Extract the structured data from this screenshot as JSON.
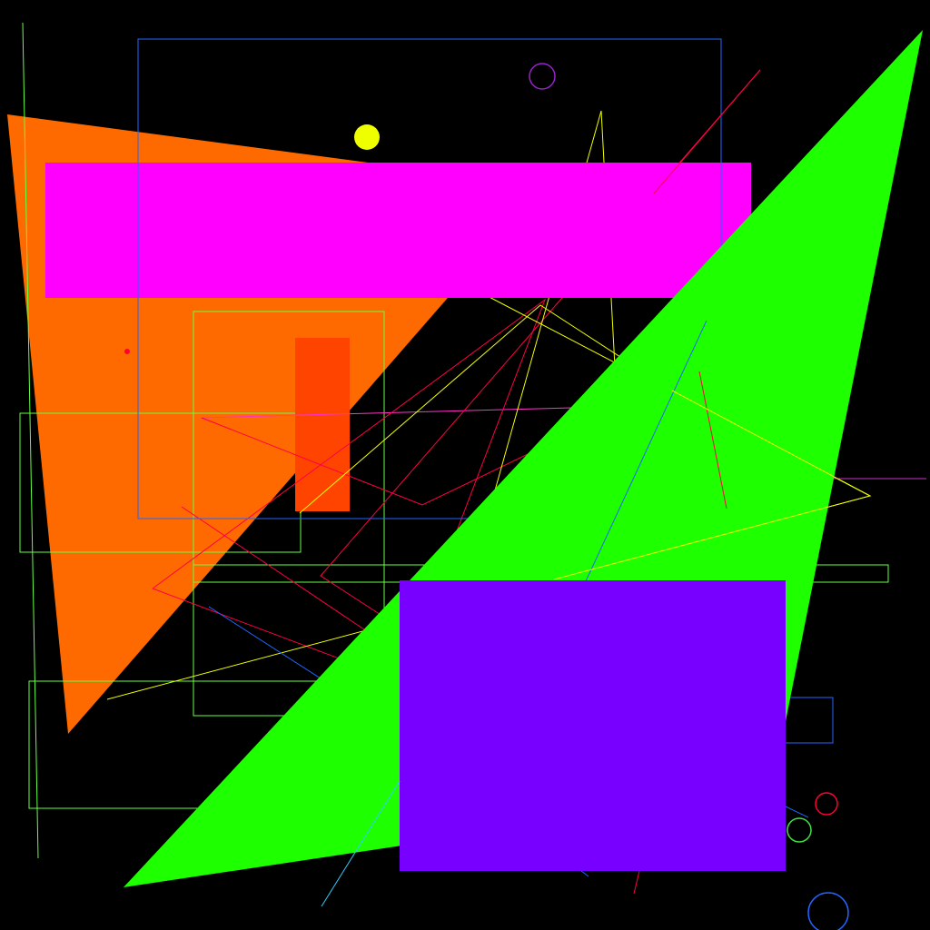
{
  "canvas": {
    "background": "#000000",
    "description_colors": {
      "orange": "#FF6A00",
      "magenta": "#FF00FF",
      "green": "#1EFF00",
      "violet": "#7700FF",
      "red_orange": "#FF4400",
      "yellow": "#F0FF00",
      "blue": "#2266FF",
      "red": "#FF0033",
      "light_green": "#88FF44",
      "purple": "#9922CC",
      "cyan": "#33CCFF"
    }
  }
}
